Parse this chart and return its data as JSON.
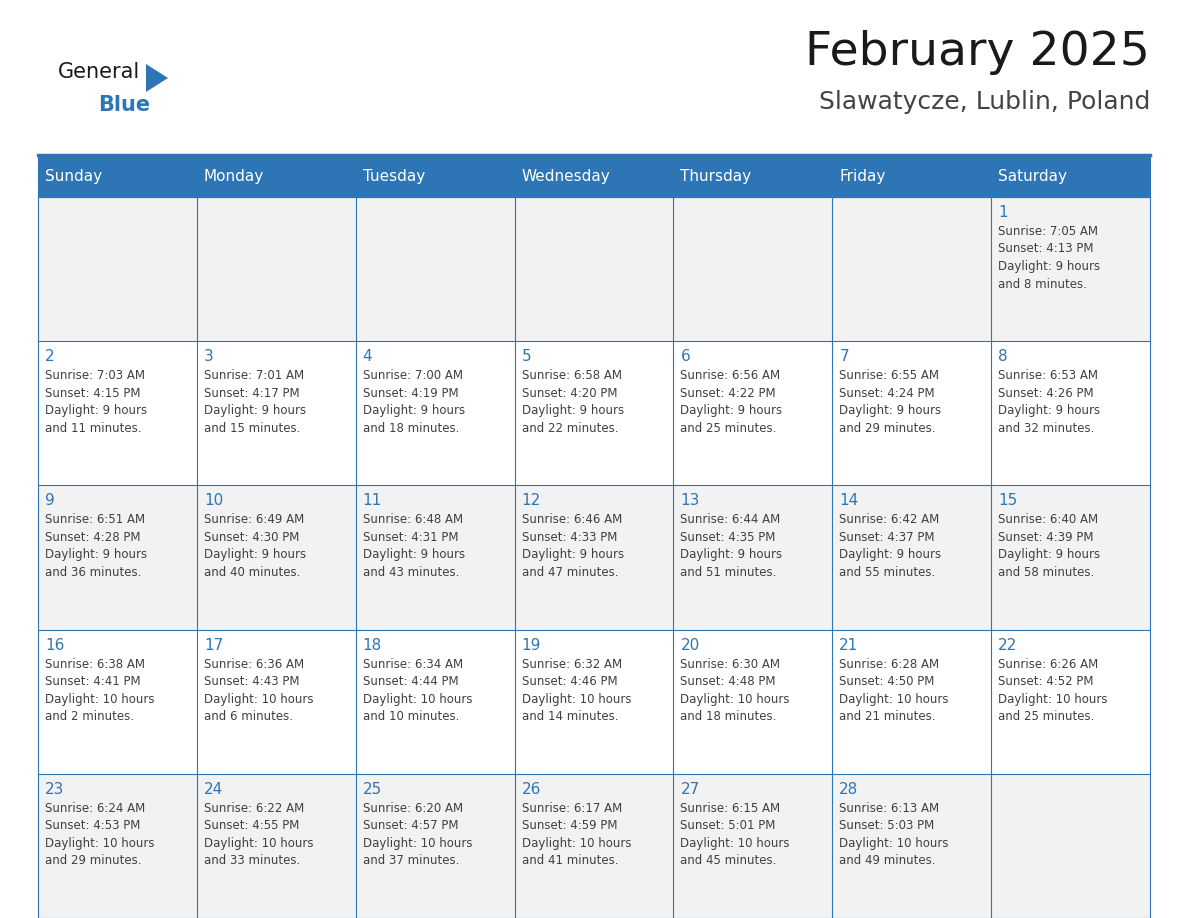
{
  "title": "February 2025",
  "subtitle": "Slawatycze, Lublin, Poland",
  "header_bg": "#2E75B6",
  "header_text": "#FFFFFF",
  "row_bg_odd": "#F2F2F2",
  "row_bg_even": "#FFFFFF",
  "day_number_color": "#2E75B6",
  "info_text_color": "#404040",
  "border_color": "#2E75B6",
  "days_of_week": [
    "Sunday",
    "Monday",
    "Tuesday",
    "Wednesday",
    "Thursday",
    "Friday",
    "Saturday"
  ],
  "weeks": [
    [
      {
        "day": null,
        "info": ""
      },
      {
        "day": null,
        "info": ""
      },
      {
        "day": null,
        "info": ""
      },
      {
        "day": null,
        "info": ""
      },
      {
        "day": null,
        "info": ""
      },
      {
        "day": null,
        "info": ""
      },
      {
        "day": 1,
        "info": "Sunrise: 7:05 AM\nSunset: 4:13 PM\nDaylight: 9 hours\nand 8 minutes."
      }
    ],
    [
      {
        "day": 2,
        "info": "Sunrise: 7:03 AM\nSunset: 4:15 PM\nDaylight: 9 hours\nand 11 minutes."
      },
      {
        "day": 3,
        "info": "Sunrise: 7:01 AM\nSunset: 4:17 PM\nDaylight: 9 hours\nand 15 minutes."
      },
      {
        "day": 4,
        "info": "Sunrise: 7:00 AM\nSunset: 4:19 PM\nDaylight: 9 hours\nand 18 minutes."
      },
      {
        "day": 5,
        "info": "Sunrise: 6:58 AM\nSunset: 4:20 PM\nDaylight: 9 hours\nand 22 minutes."
      },
      {
        "day": 6,
        "info": "Sunrise: 6:56 AM\nSunset: 4:22 PM\nDaylight: 9 hours\nand 25 minutes."
      },
      {
        "day": 7,
        "info": "Sunrise: 6:55 AM\nSunset: 4:24 PM\nDaylight: 9 hours\nand 29 minutes."
      },
      {
        "day": 8,
        "info": "Sunrise: 6:53 AM\nSunset: 4:26 PM\nDaylight: 9 hours\nand 32 minutes."
      }
    ],
    [
      {
        "day": 9,
        "info": "Sunrise: 6:51 AM\nSunset: 4:28 PM\nDaylight: 9 hours\nand 36 minutes."
      },
      {
        "day": 10,
        "info": "Sunrise: 6:49 AM\nSunset: 4:30 PM\nDaylight: 9 hours\nand 40 minutes."
      },
      {
        "day": 11,
        "info": "Sunrise: 6:48 AM\nSunset: 4:31 PM\nDaylight: 9 hours\nand 43 minutes."
      },
      {
        "day": 12,
        "info": "Sunrise: 6:46 AM\nSunset: 4:33 PM\nDaylight: 9 hours\nand 47 minutes."
      },
      {
        "day": 13,
        "info": "Sunrise: 6:44 AM\nSunset: 4:35 PM\nDaylight: 9 hours\nand 51 minutes."
      },
      {
        "day": 14,
        "info": "Sunrise: 6:42 AM\nSunset: 4:37 PM\nDaylight: 9 hours\nand 55 minutes."
      },
      {
        "day": 15,
        "info": "Sunrise: 6:40 AM\nSunset: 4:39 PM\nDaylight: 9 hours\nand 58 minutes."
      }
    ],
    [
      {
        "day": 16,
        "info": "Sunrise: 6:38 AM\nSunset: 4:41 PM\nDaylight: 10 hours\nand 2 minutes."
      },
      {
        "day": 17,
        "info": "Sunrise: 6:36 AM\nSunset: 4:43 PM\nDaylight: 10 hours\nand 6 minutes."
      },
      {
        "day": 18,
        "info": "Sunrise: 6:34 AM\nSunset: 4:44 PM\nDaylight: 10 hours\nand 10 minutes."
      },
      {
        "day": 19,
        "info": "Sunrise: 6:32 AM\nSunset: 4:46 PM\nDaylight: 10 hours\nand 14 minutes."
      },
      {
        "day": 20,
        "info": "Sunrise: 6:30 AM\nSunset: 4:48 PM\nDaylight: 10 hours\nand 18 minutes."
      },
      {
        "day": 21,
        "info": "Sunrise: 6:28 AM\nSunset: 4:50 PM\nDaylight: 10 hours\nand 21 minutes."
      },
      {
        "day": 22,
        "info": "Sunrise: 6:26 AM\nSunset: 4:52 PM\nDaylight: 10 hours\nand 25 minutes."
      }
    ],
    [
      {
        "day": 23,
        "info": "Sunrise: 6:24 AM\nSunset: 4:53 PM\nDaylight: 10 hours\nand 29 minutes."
      },
      {
        "day": 24,
        "info": "Sunrise: 6:22 AM\nSunset: 4:55 PM\nDaylight: 10 hours\nand 33 minutes."
      },
      {
        "day": 25,
        "info": "Sunrise: 6:20 AM\nSunset: 4:57 PM\nDaylight: 10 hours\nand 37 minutes."
      },
      {
        "day": 26,
        "info": "Sunrise: 6:17 AM\nSunset: 4:59 PM\nDaylight: 10 hours\nand 41 minutes."
      },
      {
        "day": 27,
        "info": "Sunrise: 6:15 AM\nSunset: 5:01 PM\nDaylight: 10 hours\nand 45 minutes."
      },
      {
        "day": 28,
        "info": "Sunrise: 6:13 AM\nSunset: 5:03 PM\nDaylight: 10 hours\nand 49 minutes."
      },
      {
        "day": null,
        "info": ""
      }
    ]
  ],
  "header_fontsize": 11,
  "day_num_fontsize": 11,
  "info_fontsize": 8.5,
  "title_fontsize": 34,
  "subtitle_fontsize": 18,
  "logo_general_fontsize": 15,
  "logo_blue_fontsize": 15
}
